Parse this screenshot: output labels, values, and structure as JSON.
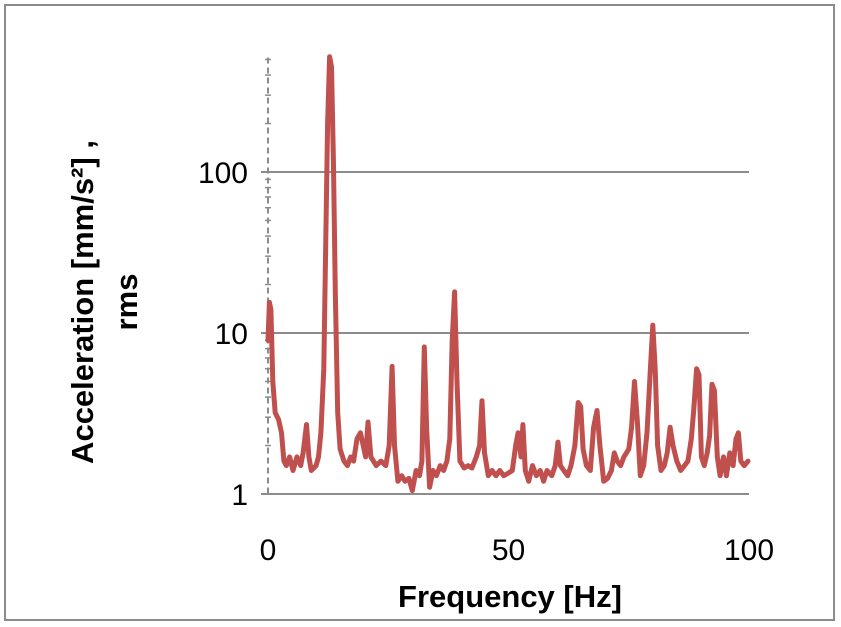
{
  "chart_data": {
    "type": "line",
    "title": "",
    "xlabel": "Frequency [Hz]",
    "ylabel_line1": "Acceleration  [mm/s²] ,",
    "ylabel_line2": "rms",
    "xlim": [
      0,
      100
    ],
    "ylim": [
      1,
      500
    ],
    "y_scale": "log",
    "x_ticks": [
      0,
      50,
      100
    ],
    "x_tick_labels": [
      "0",
      "50",
      "100"
    ],
    "y_ticks": [
      1,
      10,
      100
    ],
    "y_tick_labels": [
      "1",
      "10",
      "100"
    ],
    "grid": "horizontal",
    "legend": "none",
    "series": [
      {
        "color": "#c0504d",
        "points": [
          [
            0.0,
            9.0
          ],
          [
            0.3,
            15.5
          ],
          [
            0.6,
            14.0
          ],
          [
            1.0,
            5.0
          ],
          [
            1.5,
            3.2
          ],
          [
            2.2,
            2.9
          ],
          [
            2.8,
            2.4
          ],
          [
            3.3,
            1.6
          ],
          [
            3.8,
            1.5
          ],
          [
            4.5,
            1.7
          ],
          [
            5.2,
            1.4
          ],
          [
            6.0,
            1.7
          ],
          [
            6.8,
            1.5
          ],
          [
            7.3,
            1.8
          ],
          [
            8.0,
            2.7
          ],
          [
            8.5,
            1.7
          ],
          [
            9.0,
            1.4
          ],
          [
            10.0,
            1.5
          ],
          [
            10.5,
            1.7
          ],
          [
            11.0,
            2.4
          ],
          [
            11.6,
            6.0
          ],
          [
            12.0,
            35.0
          ],
          [
            12.4,
            200.0
          ],
          [
            12.8,
            520.0
          ],
          [
            13.2,
            450.0
          ],
          [
            13.6,
            120.0
          ],
          [
            14.0,
            18.0
          ],
          [
            14.5,
            3.2
          ],
          [
            15.0,
            1.9
          ],
          [
            15.8,
            1.6
          ],
          [
            16.5,
            1.5
          ],
          [
            17.2,
            1.7
          ],
          [
            17.8,
            1.6
          ],
          [
            18.5,
            2.2
          ],
          [
            19.2,
            2.4
          ],
          [
            19.8,
            2.0
          ],
          [
            20.3,
            1.7
          ],
          [
            20.8,
            2.8
          ],
          [
            21.4,
            1.7
          ],
          [
            22.5,
            1.5
          ],
          [
            23.5,
            1.6
          ],
          [
            24.5,
            1.5
          ],
          [
            25.2,
            2.0
          ],
          [
            25.8,
            6.2
          ],
          [
            26.3,
            2.0
          ],
          [
            27.0,
            1.2
          ],
          [
            27.8,
            1.3
          ],
          [
            28.5,
            1.2
          ],
          [
            29.3,
            1.25
          ],
          [
            30.0,
            1.05
          ],
          [
            30.8,
            1.4
          ],
          [
            31.5,
            1.3
          ],
          [
            32.0,
            1.6
          ],
          [
            32.5,
            8.2
          ],
          [
            33.0,
            2.5
          ],
          [
            33.6,
            1.1
          ],
          [
            34.3,
            1.4
          ],
          [
            35.0,
            1.3
          ],
          [
            35.8,
            1.5
          ],
          [
            36.5,
            1.4
          ],
          [
            37.2,
            1.6
          ],
          [
            37.8,
            2.2
          ],
          [
            38.3,
            9.0
          ],
          [
            38.8,
            18.0
          ],
          [
            39.3,
            5.0
          ],
          [
            39.9,
            1.6
          ],
          [
            40.8,
            1.45
          ],
          [
            41.6,
            1.5
          ],
          [
            42.4,
            1.45
          ],
          [
            43.3,
            1.7
          ],
          [
            44.0,
            2.0
          ],
          [
            44.5,
            3.8
          ],
          [
            45.0,
            1.8
          ],
          [
            45.8,
            1.3
          ],
          [
            46.6,
            1.4
          ],
          [
            47.4,
            1.3
          ],
          [
            48.2,
            1.4
          ],
          [
            49.0,
            1.3
          ],
          [
            50.0,
            1.35
          ],
          [
            50.8,
            1.4
          ],
          [
            51.5,
            2.0
          ],
          [
            52.0,
            2.4
          ],
          [
            52.6,
            1.7
          ],
          [
            53.0,
            2.7
          ],
          [
            53.5,
            1.4
          ],
          [
            54.2,
            1.2
          ],
          [
            55.0,
            1.5
          ],
          [
            55.8,
            1.3
          ],
          [
            56.6,
            1.4
          ],
          [
            57.3,
            1.2
          ],
          [
            58.0,
            1.4
          ],
          [
            59.0,
            1.3
          ],
          [
            59.7,
            1.5
          ],
          [
            60.3,
            2.1
          ],
          [
            60.8,
            1.5
          ],
          [
            61.5,
            1.4
          ],
          [
            62.3,
            1.3
          ],
          [
            63.0,
            1.5
          ],
          [
            63.8,
            2.0
          ],
          [
            64.5,
            3.7
          ],
          [
            65.0,
            3.5
          ],
          [
            65.5,
            1.9
          ],
          [
            66.2,
            1.5
          ],
          [
            67.0,
            1.4
          ],
          [
            67.7,
            2.6
          ],
          [
            68.4,
            3.3
          ],
          [
            69.0,
            2.0
          ],
          [
            69.8,
            1.2
          ],
          [
            70.6,
            1.25
          ],
          [
            71.4,
            1.4
          ],
          [
            72.0,
            1.8
          ],
          [
            72.6,
            1.6
          ],
          [
            73.3,
            1.5
          ],
          [
            74.0,
            1.7
          ],
          [
            75.0,
            1.9
          ],
          [
            75.6,
            2.6
          ],
          [
            76.2,
            5.0
          ],
          [
            76.8,
            2.8
          ],
          [
            77.4,
            1.3
          ],
          [
            78.1,
            1.5
          ],
          [
            78.8,
            2.4
          ],
          [
            79.5,
            6.0
          ],
          [
            80.0,
            11.2
          ],
          [
            80.5,
            6.0
          ],
          [
            81.0,
            2.0
          ],
          [
            81.7,
            1.4
          ],
          [
            82.4,
            1.5
          ],
          [
            83.0,
            1.8
          ],
          [
            83.6,
            2.6
          ],
          [
            84.2,
            2.0
          ],
          [
            85.0,
            1.6
          ],
          [
            85.8,
            1.4
          ],
          [
            86.6,
            1.5
          ],
          [
            87.3,
            1.6
          ],
          [
            88.0,
            2.2
          ],
          [
            88.5,
            3.3
          ],
          [
            89.1,
            6.0
          ],
          [
            89.6,
            5.5
          ],
          [
            90.1,
            1.7
          ],
          [
            90.7,
            1.5
          ],
          [
            91.3,
            1.8
          ],
          [
            91.8,
            2.3
          ],
          [
            92.3,
            4.8
          ],
          [
            92.8,
            4.4
          ],
          [
            93.4,
            1.7
          ],
          [
            94.0,
            1.3
          ],
          [
            94.7,
            1.7
          ],
          [
            95.3,
            1.3
          ],
          [
            96.0,
            1.8
          ],
          [
            96.7,
            1.5
          ],
          [
            97.3,
            2.2
          ],
          [
            97.8,
            2.4
          ],
          [
            98.3,
            1.6
          ],
          [
            99.0,
            1.5
          ],
          [
            99.8,
            1.6
          ]
        ]
      }
    ]
  }
}
